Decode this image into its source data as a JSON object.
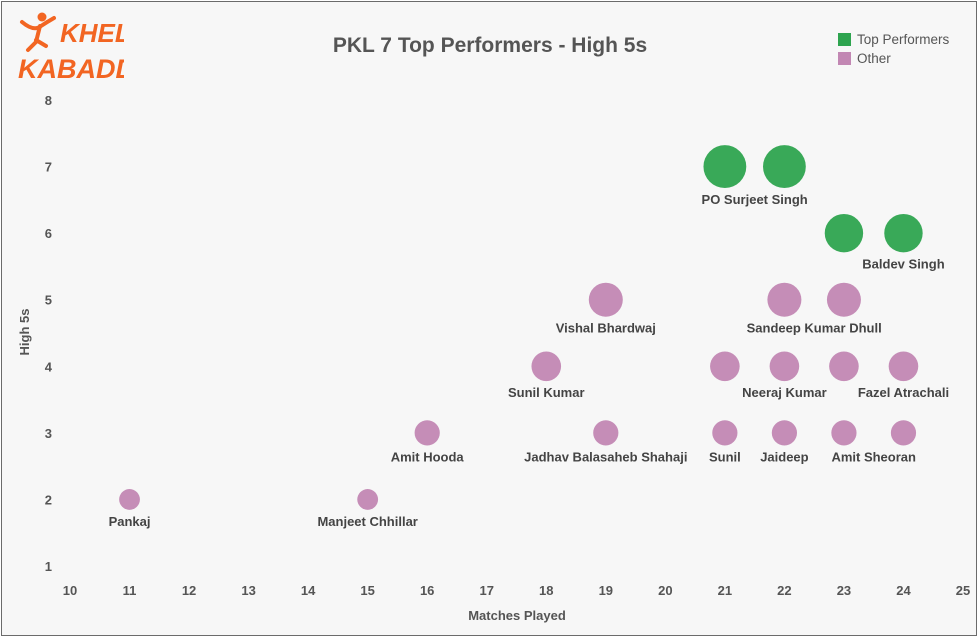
{
  "logo": {
    "line1": "KHEL",
    "line2": "KABADDI",
    "accent_color": "#f26522"
  },
  "legend": {
    "items": [
      {
        "label": "Top Performers",
        "color": "#2ea44f"
      },
      {
        "label": "Other",
        "color": "#c287b3"
      }
    ]
  },
  "chart_data": {
    "type": "scatter",
    "title": "PKL 7 Top Performers - High 5s",
    "xlabel": "Matches Played",
    "ylabel": "High 5s",
    "xlim": [
      10,
      25
    ],
    "ylim": [
      1,
      8
    ],
    "xticks": [
      10,
      11,
      12,
      13,
      14,
      15,
      16,
      17,
      18,
      19,
      20,
      21,
      22,
      23,
      24,
      25
    ],
    "yticks": [
      1,
      2,
      3,
      4,
      5,
      6,
      7,
      8
    ],
    "grid": false,
    "legend_position": "top-right",
    "series": [
      {
        "name": "Top Performers",
        "color": "#2ea44f",
        "points": [
          {
            "x": 21,
            "y": 7,
            "label": ""
          },
          {
            "x": 22,
            "y": 7,
            "label": ""
          },
          {
            "x": 23,
            "y": 6,
            "label": ""
          },
          {
            "x": 24,
            "y": 6,
            "label": ""
          }
        ]
      },
      {
        "name": "Other",
        "color": "#c287b3",
        "points": [
          {
            "x": 19,
            "y": 5,
            "label": ""
          },
          {
            "x": 22,
            "y": 5,
            "label": ""
          },
          {
            "x": 23,
            "y": 5,
            "label": ""
          },
          {
            "x": 18,
            "y": 4,
            "label": ""
          },
          {
            "x": 21,
            "y": 4,
            "label": ""
          },
          {
            "x": 22,
            "y": 4,
            "label": ""
          },
          {
            "x": 23,
            "y": 4,
            "label": ""
          },
          {
            "x": 24,
            "y": 4,
            "label": ""
          },
          {
            "x": 16,
            "y": 3,
            "label": ""
          },
          {
            "x": 19,
            "y": 3,
            "label": ""
          },
          {
            "x": 21,
            "y": 3,
            "label": ""
          },
          {
            "x": 22,
            "y": 3,
            "label": ""
          },
          {
            "x": 23,
            "y": 3,
            "label": ""
          },
          {
            "x": 24,
            "y": 3,
            "label": ""
          },
          {
            "x": 11,
            "y": 2,
            "label": ""
          },
          {
            "x": 15,
            "y": 2,
            "label": ""
          }
        ]
      }
    ],
    "annotations": [
      {
        "text": "PO Surjeet Singh",
        "x": 21.5,
        "y": 7
      },
      {
        "text": "Baldev Singh",
        "x": 24,
        "y": 6
      },
      {
        "text": "Vishal Bhardwaj",
        "x": 19,
        "y": 5
      },
      {
        "text": "Sandeep Kumar Dhull",
        "x": 22.5,
        "y": 5
      },
      {
        "text": "Sunil Kumar",
        "x": 18,
        "y": 4
      },
      {
        "text": "Neeraj Kumar",
        "x": 22,
        "y": 4
      },
      {
        "text": "Fazel Atrachali",
        "x": 24,
        "y": 4
      },
      {
        "text": "Amit Hooda",
        "x": 16,
        "y": 3
      },
      {
        "text": "Jadhav Balasaheb Shahaji",
        "x": 19,
        "y": 3
      },
      {
        "text": "Sunil",
        "x": 21,
        "y": 3
      },
      {
        "text": "Jaideep",
        "x": 22,
        "y": 3
      },
      {
        "text": "Amit Sheoran",
        "x": 23.5,
        "y": 3
      },
      {
        "text": "Pankaj",
        "x": 11,
        "y": 2
      },
      {
        "text": "Manjeet Chhillar",
        "x": 15,
        "y": 2
      }
    ]
  }
}
